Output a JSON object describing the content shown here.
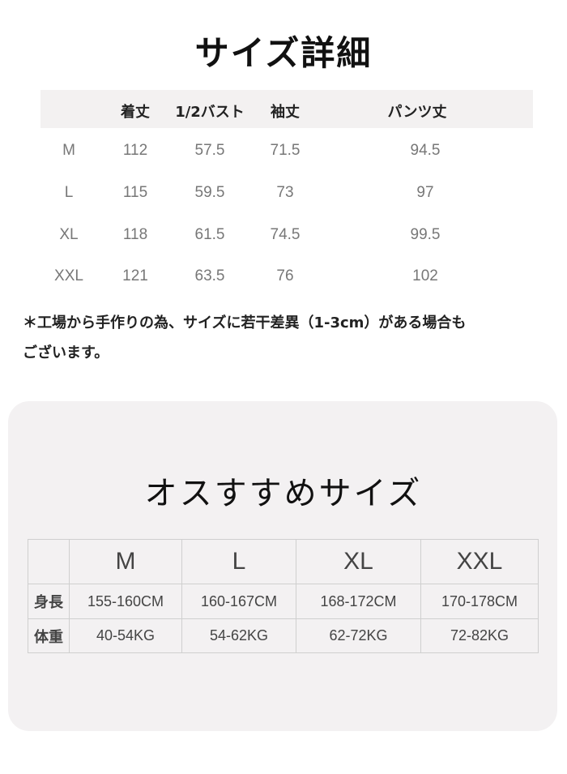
{
  "size_details": {
    "title": "サイズ詳細",
    "headers": [
      "着丈",
      "1/2バスト",
      "袖丈",
      "パンツ丈"
    ],
    "rows": [
      {
        "size": "M",
        "values": [
          "112",
          "57.5",
          "71.5",
          "94.5"
        ]
      },
      {
        "size": "L",
        "values": [
          "115",
          "59.5",
          "73",
          "97"
        ]
      },
      {
        "size": "XL",
        "values": [
          "118",
          "61.5",
          "74.5",
          "99.5"
        ]
      },
      {
        "size": "XXL",
        "values": [
          "121",
          "63.5",
          "76",
          "102"
        ]
      }
    ],
    "note_line1": "＊工場から手作りの為、サイズに若干差異（1-3cm）がある場合も",
    "note_line2": "ございます。"
  },
  "recommended": {
    "title": "オスすすめサイズ",
    "sizes": [
      "M",
      "L",
      "XL",
      "XXL"
    ],
    "rows": [
      {
        "label": "身長",
        "values": [
          "155-160CM",
          "160-167CM",
          "168-172CM",
          "170-178CM"
        ]
      },
      {
        "label": "体重",
        "values": [
          "40-54KG",
          "54-62KG",
          "62-72KG",
          "72-82KG"
        ]
      }
    ]
  }
}
